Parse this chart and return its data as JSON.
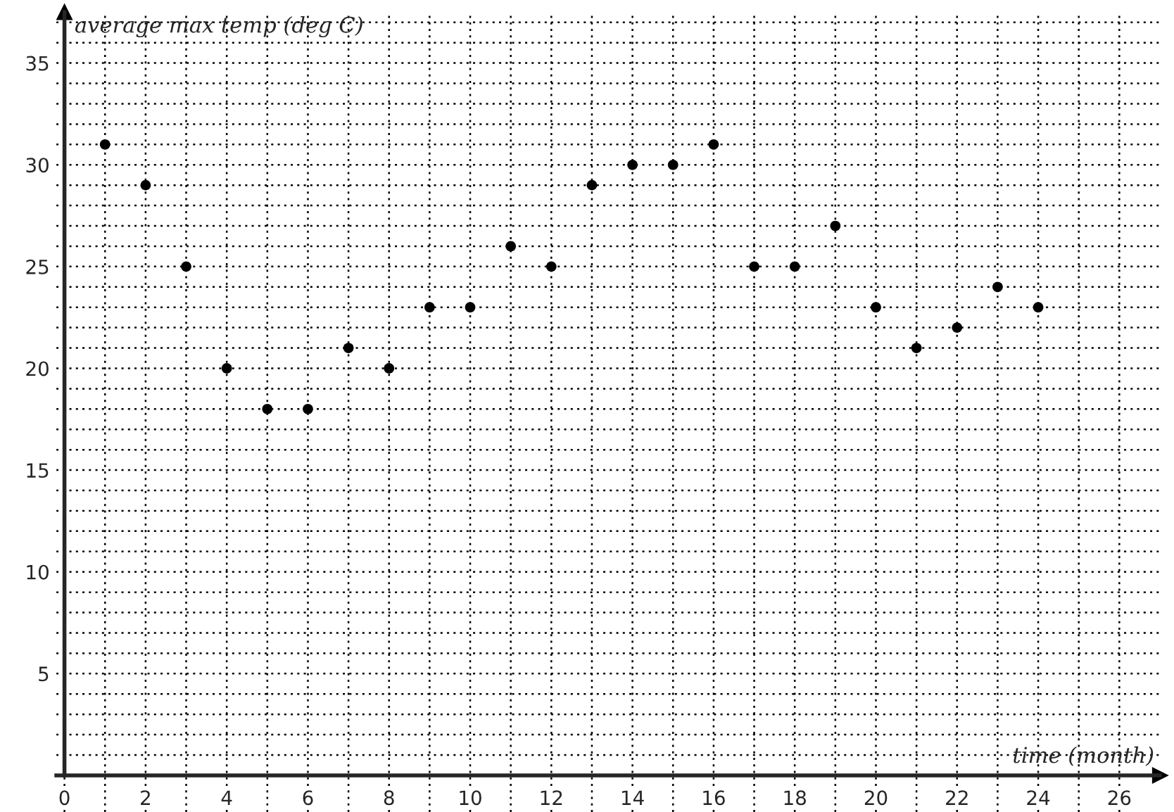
{
  "chart_data": {
    "type": "scatter",
    "xlabel": "time (month)",
    "ylabel": "average max temp (deg C)",
    "x": [
      1,
      2,
      3,
      4,
      5,
      6,
      7,
      8,
      9,
      10,
      11,
      12,
      13,
      14,
      15,
      16,
      17,
      18,
      19,
      20,
      21,
      22,
      23,
      24
    ],
    "series": [
      {
        "color": "#000000",
        "values": [
          31,
          29,
          25,
          20,
          18,
          18,
          21,
          20,
          23,
          23,
          26,
          25,
          29,
          30,
          30,
          31,
          25,
          25,
          27,
          23,
          21,
          22,
          24,
          23
        ]
      }
    ],
    "xlim": [
      -0.2,
      27
    ],
    "ylim": [
      -1.8,
      37.5
    ],
    "xticks": [
      0,
      {
        "value": 1,
        "label": null
      },
      2,
      {
        "value": 3,
        "label": null
      },
      4,
      {
        "value": 5,
        "label": null
      },
      6,
      {
        "value": 7,
        "label": null
      },
      8,
      {
        "value": 9,
        "label": null
      },
      10,
      {
        "value": 11,
        "label": null
      },
      12,
      {
        "value": 13,
        "label": null
      },
      14,
      {
        "value": 15,
        "label": null
      },
      16,
      {
        "value": 17,
        "label": null
      },
      18,
      {
        "value": 19,
        "label": null
      },
      20,
      {
        "value": 21,
        "label": null
      },
      22,
      {
        "value": 23,
        "label": null
      },
      24,
      {
        "value": 25,
        "label": null
      },
      26
    ],
    "yticks": [
      {
        "value": 1,
        "label": null
      },
      {
        "value": 2,
        "label": null
      },
      {
        "value": 3,
        "label": null
      },
      {
        "value": 4,
        "label": null
      },
      5,
      {
        "value": 6,
        "label": null
      },
      {
        "value": 7,
        "label": null
      },
      {
        "value": 8,
        "label": null
      },
      {
        "value": 9,
        "label": null
      },
      10,
      {
        "value": 11,
        "label": null
      },
      {
        "value": 12,
        "label": null
      },
      {
        "value": 13,
        "label": null
      },
      {
        "value": 14,
        "label": null
      },
      15,
      {
        "value": 16,
        "label": null
      },
      {
        "value": 17,
        "label": null
      },
      {
        "value": 18,
        "label": null
      },
      {
        "value": 19,
        "label": null
      },
      20,
      {
        "value": 21,
        "label": null
      },
      {
        "value": 22,
        "label": null
      },
      {
        "value": 23,
        "label": null
      },
      {
        "value": 24,
        "label": null
      },
      25,
      {
        "value": 26,
        "label": null
      },
      {
        "value": 27,
        "label": null
      },
      {
        "value": 28,
        "label": null
      },
      {
        "value": 29,
        "label": null
      },
      30,
      {
        "value": 31,
        "label": null
      },
      {
        "value": 32,
        "label": null
      },
      {
        "value": 33,
        "label": null
      },
      {
        "value": 34,
        "label": null
      },
      35,
      {
        "value": 36,
        "label": null
      },
      {
        "value": 37,
        "label": null
      }
    ],
    "grid": true,
    "marker": "circle"
  }
}
